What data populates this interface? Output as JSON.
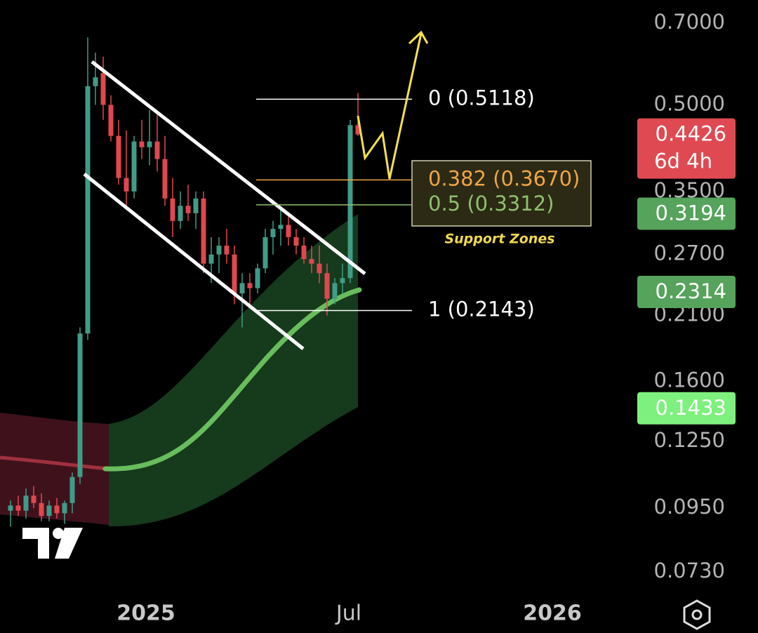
{
  "price_axis": {
    "scale": "log",
    "ticks": [
      {
        "value": 0.7,
        "label": "0.7000"
      },
      {
        "value": 0.5,
        "label": "0.5000"
      },
      {
        "value": 0.35,
        "label": "0.3500"
      },
      {
        "value": 0.27,
        "label": "0.2700"
      },
      {
        "value": 0.21,
        "label": "0.2100"
      },
      {
        "value": 0.16,
        "label": "0.1600"
      },
      {
        "value": 0.125,
        "label": "0.1250"
      },
      {
        "value": 0.095,
        "label": "0.0950"
      },
      {
        "value": 0.073,
        "label": "0.0730"
      }
    ]
  },
  "badges": [
    {
      "value": 0.4426,
      "sub": "6d 4h",
      "color": "#df4a52"
    },
    {
      "value": 0.3194,
      "color": "#56a35b"
    },
    {
      "value": 0.2314,
      "color": "#56a35b"
    },
    {
      "value": 0.1433,
      "color": "#7ef07e"
    }
  ],
  "fib_levels": [
    {
      "label": "0 (0.5118)",
      "value": 0.5118,
      "color": "#ffffff"
    },
    {
      "label": "0.382 (0.3670)",
      "value": 0.367,
      "color": "#f0a545"
    },
    {
      "label": "0.5 (0.3312)",
      "value": 0.3312,
      "color": "#8fc070"
    },
    {
      "label": "1 (0.2143)",
      "value": 0.2143,
      "color": "#ffffff"
    }
  ],
  "annotation": "Support Zones",
  "time_axis": [
    "2025",
    "Jul",
    "2026"
  ],
  "candles": [
    {
      "o": 0.094,
      "h": 0.098,
      "l": 0.088,
      "c": 0.096
    },
    {
      "o": 0.096,
      "h": 0.1,
      "l": 0.092,
      "c": 0.094
    },
    {
      "o": 0.094,
      "h": 0.103,
      "l": 0.091,
      "c": 0.1
    },
    {
      "o": 0.1,
      "h": 0.104,
      "l": 0.095,
      "c": 0.097
    },
    {
      "o": 0.097,
      "h": 0.101,
      "l": 0.09,
      "c": 0.092
    },
    {
      "o": 0.092,
      "h": 0.098,
      "l": 0.09,
      "c": 0.096
    },
    {
      "o": 0.096,
      "h": 0.099,
      "l": 0.091,
      "c": 0.093
    },
    {
      "o": 0.093,
      "h": 0.098,
      "l": 0.089,
      "c": 0.097
    },
    {
      "o": 0.097,
      "h": 0.11,
      "l": 0.093,
      "c": 0.108
    },
    {
      "o": 0.108,
      "h": 0.2,
      "l": 0.105,
      "c": 0.195
    },
    {
      "o": 0.195,
      "h": 0.66,
      "l": 0.19,
      "c": 0.54
    },
    {
      "o": 0.54,
      "h": 0.62,
      "l": 0.5,
      "c": 0.56
    },
    {
      "o": 0.57,
      "h": 0.61,
      "l": 0.47,
      "c": 0.5
    },
    {
      "o": 0.5,
      "h": 0.52,
      "l": 0.43,
      "c": 0.44
    },
    {
      "o": 0.44,
      "h": 0.47,
      "l": 0.36,
      "c": 0.37
    },
    {
      "o": 0.37,
      "h": 0.45,
      "l": 0.33,
      "c": 0.35
    },
    {
      "o": 0.35,
      "h": 0.44,
      "l": 0.34,
      "c": 0.43
    },
    {
      "o": 0.43,
      "h": 0.47,
      "l": 0.4,
      "c": 0.42
    },
    {
      "o": 0.42,
      "h": 0.49,
      "l": 0.39,
      "c": 0.43
    },
    {
      "o": 0.43,
      "h": 0.48,
      "l": 0.38,
      "c": 0.4
    },
    {
      "o": 0.4,
      "h": 0.44,
      "l": 0.33,
      "c": 0.34
    },
    {
      "o": 0.34,
      "h": 0.37,
      "l": 0.29,
      "c": 0.31
    },
    {
      "o": 0.31,
      "h": 0.35,
      "l": 0.3,
      "c": 0.33
    },
    {
      "o": 0.33,
      "h": 0.36,
      "l": 0.31,
      "c": 0.32
    },
    {
      "o": 0.32,
      "h": 0.35,
      "l": 0.3,
      "c": 0.34
    },
    {
      "o": 0.34,
      "h": 0.35,
      "l": 0.25,
      "c": 0.26
    },
    {
      "o": 0.26,
      "h": 0.29,
      "l": 0.24,
      "c": 0.27
    },
    {
      "o": 0.27,
      "h": 0.29,
      "l": 0.25,
      "c": 0.28
    },
    {
      "o": 0.28,
      "h": 0.3,
      "l": 0.26,
      "c": 0.27
    },
    {
      "o": 0.27,
      "h": 0.28,
      "l": 0.22,
      "c": 0.23
    },
    {
      "o": 0.23,
      "h": 0.25,
      "l": 0.2,
      "c": 0.24
    },
    {
      "o": 0.24,
      "h": 0.25,
      "l": 0.22,
      "c": 0.235
    },
    {
      "o": 0.235,
      "h": 0.26,
      "l": 0.23,
      "c": 0.255
    },
    {
      "o": 0.255,
      "h": 0.3,
      "l": 0.25,
      "c": 0.29
    },
    {
      "o": 0.29,
      "h": 0.31,
      "l": 0.27,
      "c": 0.3
    },
    {
      "o": 0.3,
      "h": 0.325,
      "l": 0.28,
      "c": 0.305
    },
    {
      "o": 0.305,
      "h": 0.32,
      "l": 0.28,
      "c": 0.29
    },
    {
      "o": 0.29,
      "h": 0.3,
      "l": 0.27,
      "c": 0.28
    },
    {
      "o": 0.28,
      "h": 0.29,
      "l": 0.26,
      "c": 0.265
    },
    {
      "o": 0.265,
      "h": 0.28,
      "l": 0.25,
      "c": 0.26
    },
    {
      "o": 0.26,
      "h": 0.28,
      "l": 0.24,
      "c": 0.25
    },
    {
      "o": 0.25,
      "h": 0.26,
      "l": 0.21,
      "c": 0.225
    },
    {
      "o": 0.225,
      "h": 0.245,
      "l": 0.22,
      "c": 0.24
    },
    {
      "o": 0.24,
      "h": 0.26,
      "l": 0.23,
      "c": 0.245
    },
    {
      "o": 0.245,
      "h": 0.47,
      "l": 0.24,
      "c": 0.46
    },
    {
      "o": 0.46,
      "h": 0.525,
      "l": 0.44,
      "c": 0.4426
    }
  ]
}
